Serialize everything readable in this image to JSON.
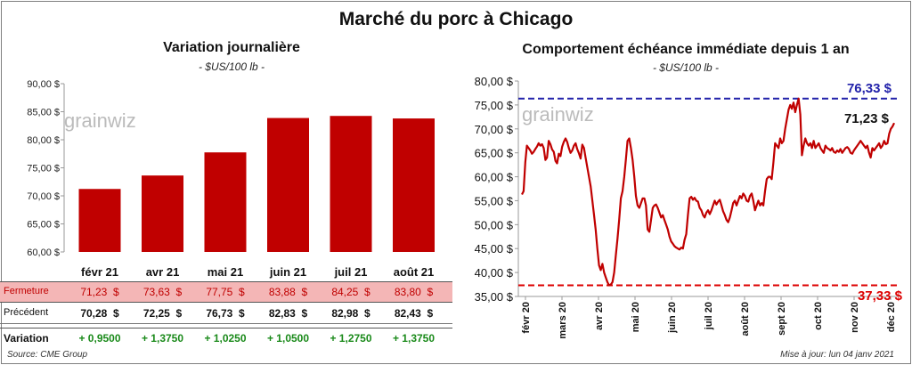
{
  "title": "Marché du porc à Chicago",
  "left_chart": {
    "subtitle": "Variation journalière",
    "unit": "- $US/100 lb -",
    "watermark": "grainwiz"
  },
  "right_chart": {
    "subtitle": "Comportement  échéance immédiate depuis 1 an",
    "unit": "- $US/100 lb -",
    "watermark": "grainwiz",
    "max_label": "76,33 $",
    "last_label": "71,23 $",
    "min_label": "37,33 $"
  },
  "table": {
    "rows": [
      {
        "label": "Fermeture",
        "values": [
          "71,23  $",
          "73,63  $",
          "77,75  $",
          "83,88  $",
          "84,25  $",
          "83,80  $"
        ]
      },
      {
        "label": "Précédent",
        "values": [
          "70,28  $",
          "72,25  $",
          "76,73  $",
          "82,83  $",
          "82,98  $",
          "82,43  $"
        ]
      },
      {
        "label": "Variation",
        "values": [
          "+ 0,9500",
          "+ 1,3750",
          "+ 1,0250",
          "+ 1,0500",
          "+ 1,2750",
          "+ 1,3750"
        ]
      }
    ]
  },
  "footer": {
    "source": "Source: CME Group",
    "updated": "Mise à jour: lun 04 janv 2021"
  },
  "colors": {
    "bar": "#c00000",
    "line": "#c00000",
    "max_line": "#2222aa",
    "min_line": "#dd0000",
    "fermeture_bg": "#f4b6b6",
    "variation_text": "#1a8a1a"
  },
  "chart_data": [
    {
      "type": "bar",
      "categories": [
        "févr 21",
        "avr 21",
        "mai 21",
        "juin 21",
        "juil 21",
        "août 21"
      ],
      "values": [
        71.23,
        73.63,
        77.75,
        83.88,
        84.25,
        83.8
      ],
      "ylim": [
        60,
        90
      ],
      "yticks": [
        "60,00 $",
        "65,00 $",
        "70,00 $",
        "75,00 $",
        "80,00 $",
        "85,00 $",
        "90,00 $"
      ],
      "ytick_values": [
        60,
        65,
        70,
        75,
        80,
        85,
        90
      ],
      "grid": false
    },
    {
      "type": "line",
      "ylim": [
        35,
        80
      ],
      "yticks": [
        "35,00 $",
        "40,00 $",
        "45,00 $",
        "50,00 $",
        "55,00 $",
        "60,00 $",
        "65,00 $",
        "70,00 $",
        "75,00 $",
        "80,00 $"
      ],
      "ytick_values": [
        35,
        40,
        45,
        50,
        55,
        60,
        65,
        70,
        75,
        80
      ],
      "xticks": [
        "févr 20",
        "mars 20",
        "avr 20",
        "mai 20",
        "juin 20",
        "juil 20",
        "août 20",
        "sept 20",
        "oct 20",
        "nov 20",
        "déc 20"
      ],
      "max_ref": 76.33,
      "min_ref": 37.33,
      "values": [
        56.3,
        57.0,
        63.0,
        66.5,
        66.0,
        65.5,
        64.8,
        65.2,
        65.8,
        66.3,
        67.0,
        66.5,
        66.8,
        66.0,
        63.5,
        64.0,
        67.5,
        66.8,
        65.7,
        65.2,
        63.3,
        62.8,
        64.8,
        64.3,
        66.3,
        67.3,
        68.0,
        67.3,
        66.0,
        65.0,
        65.5,
        66.5,
        67.0,
        65.8,
        64.9,
        63.8,
        66.7,
        66.0,
        64.0,
        62.0,
        60.0,
        58.0,
        55.0,
        52.0,
        49.0,
        45.0,
        41.5,
        40.5,
        41.8,
        40.0,
        39.0,
        38.0,
        37.33,
        37.5,
        38.0,
        40.0,
        43.5,
        47.0,
        51.0,
        55.5,
        57.0,
        60.0,
        63.5,
        67.5,
        68.0,
        66.0,
        63.5,
        60.0,
        56.0,
        54.0,
        53.5,
        54.5,
        55.5,
        55.5,
        54.0,
        49.0,
        48.5,
        51.0,
        53.5,
        54.0,
        54.2,
        53.5,
        52.5,
        51.5,
        52.0,
        51.0,
        50.0,
        49.0,
        47.5,
        46.5,
        46.0,
        45.5,
        45.2,
        45.0,
        44.8,
        45.2,
        45.0,
        46.8,
        48.0,
        52.0,
        55.5,
        55.8,
        55.2,
        55.6,
        55.0,
        54.8,
        53.5,
        53.0,
        52.0,
        51.5,
        52.5,
        53.0,
        52.2,
        53.0,
        54.0,
        55.0,
        54.2,
        54.8,
        55.2,
        54.0,
        52.8,
        52.0,
        51.0,
        50.5,
        51.5,
        53.0,
        54.5,
        55.0,
        54.0,
        55.0,
        56.0,
        55.5,
        56.5,
        56.0,
        55.0,
        54.8,
        56.0,
        56.5,
        55.0,
        53.0,
        54.0,
        55.0,
        54.0,
        54.5,
        54.0,
        57.0,
        59.5,
        60.0,
        60.0,
        59.5,
        63.0,
        67.0,
        66.5,
        66.0,
        68.0,
        67.0,
        67.5,
        70.0,
        72.0,
        74.0,
        75.0,
        74.2,
        75.5,
        73.5,
        75.0,
        76.33,
        73.0,
        64.5,
        66.5,
        68.0,
        67.0,
        66.5,
        67.0,
        66.0,
        67.5,
        66.0,
        66.5,
        67.0,
        66.0,
        65.5,
        65.0,
        66.5,
        66.0,
        65.8,
        65.5,
        66.0,
        65.2,
        65.0,
        65.5,
        65.2,
        65.8,
        65.0,
        65.5,
        66.0,
        66.2,
        65.8,
        65.0,
        64.8,
        65.5,
        66.0,
        66.5,
        67.0,
        67.5,
        67.0,
        66.5,
        66.0,
        66.5,
        65.0,
        64.0,
        66.0,
        65.5,
        66.0,
        66.5,
        67.0,
        66.0,
        66.5,
        67.5,
        66.8,
        67.0,
        69.0,
        70.0,
        70.5,
        71.23
      ]
    }
  ]
}
